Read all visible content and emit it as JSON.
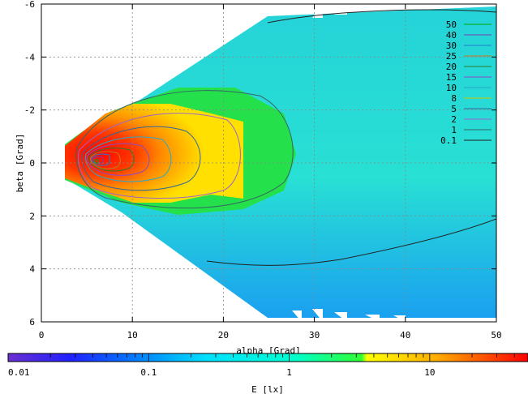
{
  "chart_data": {
    "type": "heatmap",
    "title": "",
    "xlabel": "alpha [Grad]",
    "ylabel": "beta [Grad]",
    "xlim": [
      0,
      50
    ],
    "ylim": [
      -6,
      6
    ],
    "y_reversed": true,
    "x_ticks": [
      "0",
      "10",
      "20",
      "30",
      "40",
      "50"
    ],
    "y_ticks": [
      "-6",
      "-4",
      "-2",
      "0",
      "2",
      "4",
      "6"
    ],
    "grid": true,
    "peak": {
      "alpha": 6,
      "beta": 0,
      "E": 50
    },
    "contour_levels": [
      {
        "label": "50",
        "value": 50,
        "color": "#00aa00"
      },
      {
        "label": "40",
        "value": 40,
        "color": "#7a3fb0"
      },
      {
        "label": "30",
        "value": 30,
        "color": "#1f7fd0"
      },
      {
        "label": "25",
        "value": 25,
        "color": "#c07a1c"
      },
      {
        "label": "20",
        "value": 20,
        "color": "#2a7d2a"
      },
      {
        "label": "15",
        "value": 15,
        "color": "#8a4ac8"
      },
      {
        "label": "10",
        "value": 10,
        "color": "#2aa8c8"
      },
      {
        "label": "8",
        "value": 8,
        "color": "#c8c800"
      },
      {
        "label": "5",
        "value": 5,
        "color": "#336699"
      },
      {
        "label": "2",
        "value": 2,
        "color": "#9966cc"
      },
      {
        "label": "1",
        "value": 1,
        "color": "#336666"
      },
      {
        "label": "0.1",
        "value": 0.1,
        "color": "#222222"
      }
    ],
    "colorbar": {
      "label": "E [lx]",
      "scale": "log",
      "range": [
        0.01,
        50
      ],
      "tick_labels": [
        {
          "value": 0.01,
          "label": "0.01"
        },
        {
          "value": 0.1,
          "label": "0.1"
        },
        {
          "value": 1,
          "label": "1"
        },
        {
          "value": 10,
          "label": "10"
        }
      ]
    }
  }
}
